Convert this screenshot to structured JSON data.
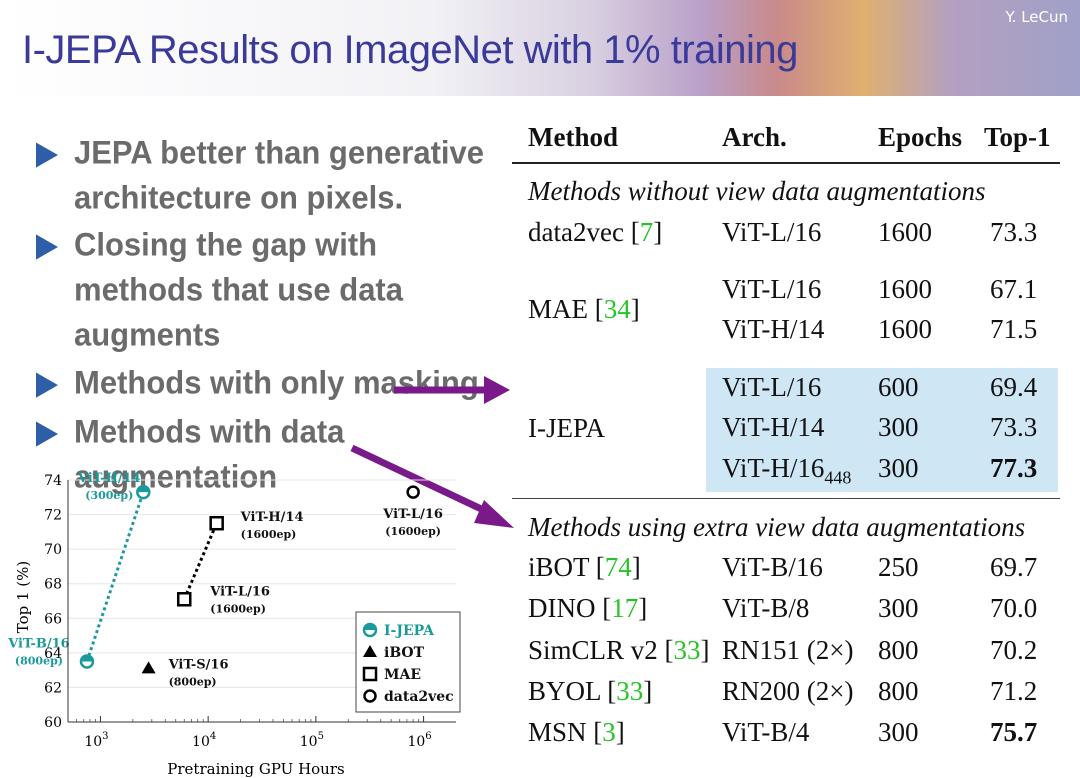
{
  "header": {
    "title": "I-JEPA Results on ImageNet with 1% training",
    "author": "Y. LeCun"
  },
  "bullets": [
    "JEPA better than generative architecture on pixels.",
    "Closing the gap with methods that use data augments",
    "Methods with only masking",
    "Methods with data augmentation"
  ],
  "table": {
    "columns": [
      "Method",
      "Arch.",
      "Epochs",
      "Top-1"
    ],
    "sections": {
      "without": "Methods without view data augmentations",
      "with": "Methods using extra view data augmentations"
    },
    "rows": {
      "data2vec": {
        "method": "data2vec",
        "ref": "7",
        "arch": "ViT-L/16",
        "epochs": "1600",
        "top1": "73.3"
      },
      "mae": {
        "method": "MAE",
        "ref": "34",
        "a1": "ViT-L/16",
        "e1": "1600",
        "t1": "67.1",
        "a2": "ViT-H/14",
        "e2": "1600",
        "t2": "71.5"
      },
      "ijepa": {
        "method": "I-JEPA",
        "a1": "ViT-L/16",
        "e1": "600",
        "t1": "69.4",
        "a2": "ViT-H/14",
        "e2": "300",
        "t2": "73.3",
        "a3": "ViT-H/16",
        "a3sub": "448",
        "e3": "300",
        "t3": "77.3"
      },
      "ibot": {
        "method": "iBOT",
        "ref": "74",
        "arch": "ViT-B/16",
        "epochs": "250",
        "top1": "69.7"
      },
      "dino": {
        "method": "DINO",
        "ref": "17",
        "arch": "ViT-B/8",
        "epochs": "300",
        "top1": "70.0"
      },
      "simclr": {
        "method": "SimCLR v2",
        "ref": "33",
        "arch": "RN151 (2×)",
        "epochs": "800",
        "top1": "70.2"
      },
      "byol": {
        "method": "BYOL",
        "ref": "33",
        "arch": "RN200 (2×)",
        "epochs": "800",
        "top1": "71.2"
      },
      "msn": {
        "method": "MSN",
        "ref": "3",
        "arch": "ViT-B/4",
        "epochs": "300",
        "top1": "75.7"
      }
    }
  },
  "colors": {
    "title": "#3a3a9a",
    "bullet_marker": "#2f5ea8",
    "arrow": "#7a1a8a",
    "ijepa": "#1a9a9a",
    "highlight": "#cfe6f5",
    "ref": "#27c427"
  },
  "chart_data": {
    "type": "scatter",
    "xlabel": "Pretraining GPU Hours",
    "ylabel": "Top 1 (%)",
    "xscale": "log",
    "xlim": [
      500,
      2000000
    ],
    "ylim": [
      60,
      74
    ],
    "yticks": [
      "60",
      "62",
      "64",
      "66",
      "68",
      "70",
      "72",
      "74"
    ],
    "xticks": [
      {
        "base": "10",
        "exp": "3",
        "value": 1000
      },
      {
        "base": "10",
        "exp": "4",
        "value": 10000
      },
      {
        "base": "10",
        "exp": "5",
        "value": 100000
      },
      {
        "base": "10",
        "exp": "6",
        "value": 1000000
      }
    ],
    "legend_position": "bottom-right",
    "series": [
      {
        "name": "I-JEPA",
        "marker": "half-circle",
        "color": "#1a9a9a",
        "connected": true,
        "points": [
          {
            "x": 750,
            "y": 63.5,
            "label": "ViT-B/16",
            "sublabel": "(800ep)"
          },
          {
            "x": 2500,
            "y": 73.3,
            "label": "ViT-H/14",
            "sublabel": "(300ep)"
          }
        ]
      },
      {
        "name": "iBOT",
        "marker": "triangle",
        "color": "#000000",
        "connected": false,
        "points": [
          {
            "x": 2800,
            "y": 63.1,
            "label": "ViT-S/16",
            "sublabel": "(800ep)"
          }
        ]
      },
      {
        "name": "MAE",
        "marker": "square",
        "color": "#000000",
        "connected": true,
        "points": [
          {
            "x": 6000,
            "y": 67.1,
            "label": "ViT-L/16",
            "sublabel": "(1600ep)"
          },
          {
            "x": 12000,
            "y": 71.5,
            "label": "ViT-H/14",
            "sublabel": "(1600ep)"
          }
        ]
      },
      {
        "name": "data2vec",
        "marker": "circle",
        "color": "#000000",
        "connected": false,
        "points": [
          {
            "x": 800000,
            "y": 73.3,
            "label": "ViT-L/16",
            "sublabel": "(1600ep)"
          }
        ]
      }
    ]
  }
}
